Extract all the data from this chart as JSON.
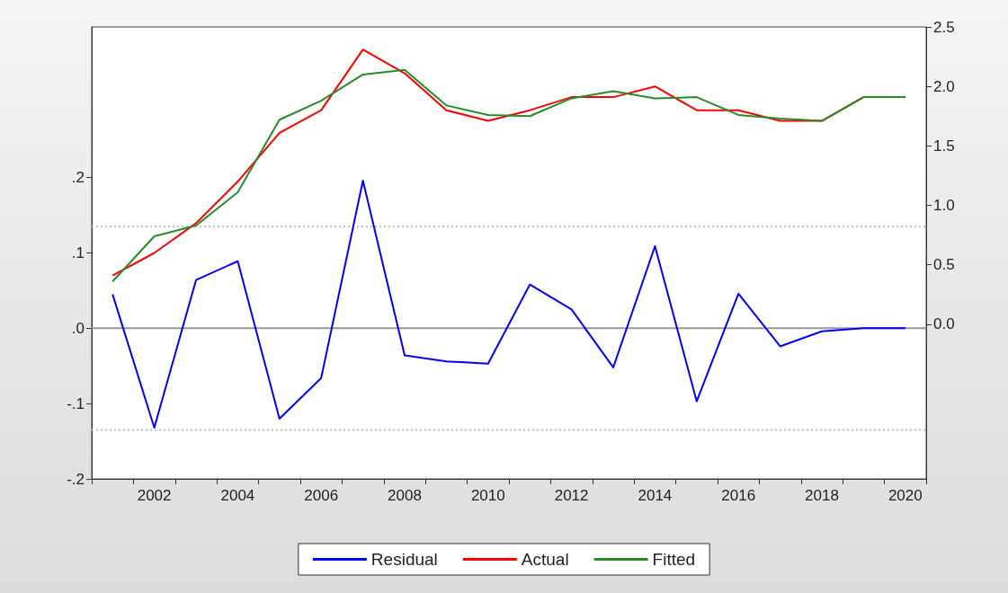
{
  "chart_data": {
    "type": "line",
    "categories": [
      null,
      "2002",
      null,
      "2004",
      null,
      "2006",
      null,
      "2008",
      null,
      "2010",
      null,
      "2012",
      null,
      "2014",
      null,
      "2016",
      null,
      "2018",
      null,
      "2020"
    ],
    "series": [
      {
        "name": "Residual",
        "color": "#0000ff",
        "values": [
          0.045,
          -0.132,
          0.064,
          0.089,
          -0.12,
          -0.066,
          0.196,
          -0.036,
          -0.044,
          -0.047,
          0.058,
          0.025,
          -0.052,
          0.109,
          -0.097,
          0.046,
          -0.024,
          -0.004,
          0,
          0
        ]
      },
      {
        "name": "Actual",
        "color": "#ff0000",
        "axis": "y2",
        "values": [
          0.41,
          0.6,
          0.85,
          1.2,
          1.61,
          1.8,
          2.31,
          2.11,
          1.8,
          1.71,
          1.8,
          1.91,
          1.91,
          2.0,
          1.8,
          1.8,
          1.71,
          1.71,
          1.91,
          1.91
        ]
      },
      {
        "name": "Fitted",
        "color": "#2a8a2a",
        "axis": "y2",
        "values": [
          0.36,
          0.74,
          0.83,
          1.11,
          1.72,
          1.88,
          2.1,
          2.14,
          1.84,
          1.76,
          1.75,
          1.9,
          1.96,
          1.9,
          1.91,
          1.76,
          1.73,
          1.71,
          1.91,
          1.91
        ]
      }
    ],
    "ylim": [
      -0.2,
      0.4
    ],
    "yticks": [
      {
        "value": -0.2,
        "label": "-.2"
      },
      {
        "value": -0.1,
        "label": "-.1"
      },
      {
        "value": 0,
        "label": ".0"
      },
      {
        "value": 0.1,
        "label": ".1"
      },
      {
        "value": 0.2,
        "label": ".2"
      }
    ],
    "y2lim": [
      -1.3,
      2.5
    ],
    "y2ticks": [
      {
        "value": 0,
        "label": "0.0"
      },
      {
        "value": 0.5,
        "label": "0.5"
      },
      {
        "value": 1,
        "label": "1.0"
      },
      {
        "value": 1.5,
        "label": "1.5"
      },
      {
        "value": 2,
        "label": "2.0"
      },
      {
        "value": 2.5,
        "label": "2.5"
      }
    ],
    "ref_lines": [
      {
        "axis": "y",
        "value": 0,
        "color": "#999999",
        "line_style": "solid"
      },
      {
        "axis": "y",
        "value": 0.135,
        "color": "#bbbbbb",
        "line_style": "dotted"
      },
      {
        "axis": "y",
        "value": -0.135,
        "color": "#bbbbbb",
        "line_style": "dotted"
      }
    ],
    "legend": "bottom",
    "marker": "none"
  }
}
